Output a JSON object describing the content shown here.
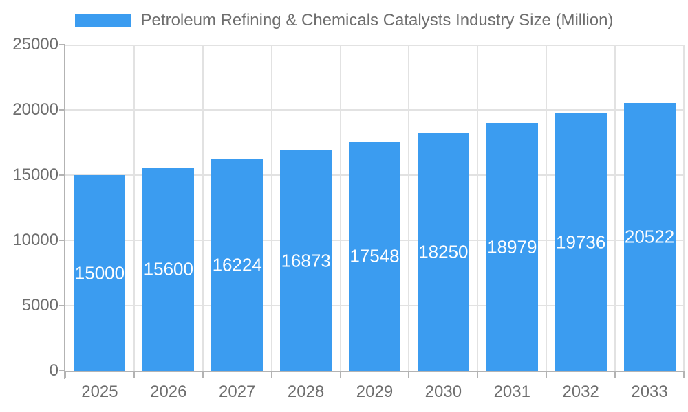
{
  "chart_data": {
    "type": "bar",
    "title": "Petroleum Refining & Chemicals Catalysts Industry Size (Million)",
    "categories": [
      "2025",
      "2026",
      "2027",
      "2028",
      "2029",
      "2030",
      "2031",
      "2032",
      "2033"
    ],
    "values": [
      15000,
      15600,
      16224,
      16873,
      17548,
      18250,
      18979,
      19736,
      20522
    ],
    "xlabel": "",
    "ylabel": "",
    "ylim": [
      0,
      25000
    ],
    "yticks": [
      0,
      5000,
      10000,
      15000,
      20000,
      25000
    ],
    "grid": true,
    "legend_position": "top",
    "value_labels_inside_bars": true
  },
  "colors": {
    "bar": "#3B9CF0",
    "axis_line": "#b3b3b3",
    "grid_line": "#e2e2e2",
    "axis_text": "#6e6e6e",
    "legend_text": "#6e6e6e",
    "value_label_text": "#ffffff",
    "background": "#ffffff"
  }
}
